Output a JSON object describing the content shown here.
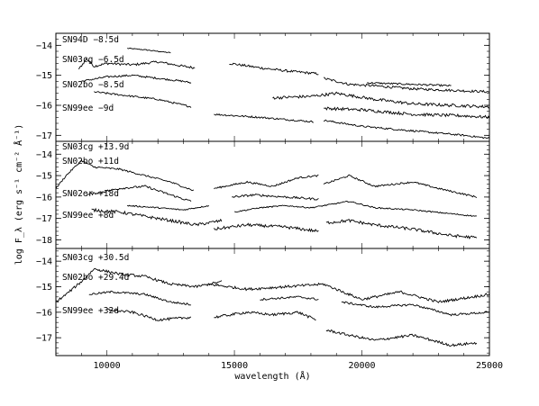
{
  "chart_data": {
    "type": "line",
    "xlabel": "wavelength (Å)",
    "ylabel": "log F_λ (erg s⁻¹ cm⁻² Å⁻¹)",
    "xlim": [
      8000,
      25000
    ],
    "x_ticks": [
      "10000",
      "15000",
      "20000",
      "25000"
    ],
    "x_tick_values": [
      10000,
      15000,
      20000,
      25000
    ],
    "panels": [
      {
        "ylim": [
          -17.2,
          -13.6
        ],
        "y_ticks": [
          "−14",
          "−15",
          "−16",
          "−17"
        ],
        "y_tick_values": [
          -14,
          -15,
          -16,
          -17
        ],
        "series": [
          {
            "name": "SN94D −8.5d",
            "noise": 0.015,
            "segments": [
              [
                [
                  10800,
                  -14.1
                ],
                [
                  11500,
                  -14.15
                ],
                [
                  12500,
                  -14.25
                ]
              ]
            ]
          },
          {
            "name": "SN03cg −6.5d",
            "noise": 0.04,
            "segments": [
              [
                [
                  8900,
                  -14.8
                ],
                [
                  9200,
                  -14.45
                ],
                [
                  9500,
                  -14.7
                ],
                [
                  10000,
                  -14.6
                ],
                [
                  11000,
                  -14.65
                ],
                [
                  12000,
                  -14.55
                ],
                [
                  13000,
                  -14.7
                ],
                [
                  13450,
                  -14.75
                ]
              ],
              [
                [
                  14800,
                  -14.6
                ],
                [
                  16000,
                  -14.75
                ],
                [
                  17000,
                  -14.85
                ],
                [
                  18300,
                  -14.95
                ]
              ],
              [
                [
                  18500,
                  -15.1
                ],
                [
                  19500,
                  -15.3
                ],
                [
                  20500,
                  -15.35
                ],
                [
                  22000,
                  -15.45
                ],
                [
                  23500,
                  -15.5
                ],
                [
                  25000,
                  -15.55
                ]
              ]
            ]
          },
          {
            "name": "SN02bo −8.5d",
            "noise": 0.03,
            "segments": [
              [
                [
                  9000,
                  -15.2
                ],
                [
                  10000,
                  -15.05
                ],
                [
                  11000,
                  -15.0
                ],
                [
                  12000,
                  -15.1
                ],
                [
                  13000,
                  -15.2
                ],
                [
                  13300,
                  -15.25
                ]
              ],
              [
                [
                  20200,
                  -15.25
                ],
                [
                  22000,
                  -15.3
                ],
                [
                  23500,
                  -15.35
                ]
              ]
            ]
          },
          {
            "name": "SN99ee −9d",
            "noise": 0.03,
            "segments": [
              [
                [
                  9500,
                  -15.55
                ],
                [
                  11000,
                  -15.7
                ],
                [
                  12000,
                  -15.8
                ],
                [
                  13300,
                  -16.05
                ]
              ],
              [
                [
                  14200,
                  -16.3
                ],
                [
                  16000,
                  -16.4
                ],
                [
                  18100,
                  -16.55
                ]
              ],
              [
                [
                  18500,
                  -16.5
                ],
                [
                  20000,
                  -16.7
                ],
                [
                  22000,
                  -16.85
                ],
                [
                  24000,
                  -17.0
                ],
                [
                  25000,
                  -17.1
                ]
              ]
            ]
          },
          {
            "name": "",
            "noise": 0.05,
            "segments": [
              [
                [
                  16500,
                  -15.75
                ],
                [
                  18000,
                  -15.7
                ],
                [
                  19000,
                  -15.6
                ],
                [
                  20500,
                  -15.8
                ],
                [
                  22000,
                  -15.95
                ],
                [
                  23500,
                  -16.0
                ],
                [
                  25000,
                  -16.05
                ]
              ],
              [
                [
                  18500,
                  -16.1
                ],
                [
                  20000,
                  -16.15
                ],
                [
                  22000,
                  -16.3
                ],
                [
                  24000,
                  -16.35
                ],
                [
                  25000,
                  -16.4
                ]
              ]
            ]
          }
        ]
      },
      {
        "ylim": [
          -18.4,
          -13.4
        ],
        "y_ticks": [
          "−14",
          "−15",
          "−16",
          "−17",
          "−18"
        ],
        "y_tick_values": [
          -14,
          -15,
          -16,
          -17,
          -18
        ],
        "series": [
          {
            "name": "SN03cg +13.9d",
            "noise": 0.04,
            "segments": [
              [
                [
                  8000,
                  -15.6
                ],
                [
                  8400,
                  -15.0
                ],
                [
                  9000,
                  -14.3
                ],
                [
                  9500,
                  -14.6
                ],
                [
                  10500,
                  -14.7
                ],
                [
                  11500,
                  -15.0
                ],
                [
                  12500,
                  -15.3
                ],
                [
                  13400,
                  -15.7
                ]
              ],
              [
                [
                  14200,
                  -15.6
                ],
                [
                  15500,
                  -15.3
                ],
                [
                  16500,
                  -15.5
                ],
                [
                  17500,
                  -15.1
                ],
                [
                  18300,
                  -15.0
                ]
              ],
              [
                [
                  18500,
                  -15.4
                ],
                [
                  19500,
                  -15.0
                ],
                [
                  20500,
                  -15.5
                ],
                [
                  22000,
                  -15.3
                ],
                [
                  23000,
                  -15.6
                ],
                [
                  24500,
                  -16.0
                ]
              ]
            ]
          },
          {
            "name": "SN02bo +11d",
            "noise": 0.05,
            "segments": [
              [
                [
                  9200,
                  -15.9
                ],
                [
                  10500,
                  -15.6
                ],
                [
                  11500,
                  -15.5
                ],
                [
                  12500,
                  -15.9
                ],
                [
                  13300,
                  -16.2
                ]
              ],
              [
                [
                  14900,
                  -16.0
                ],
                [
                  15800,
                  -15.9
                ],
                [
                  17000,
                  -16.0
                ],
                [
                  18300,
                  -16.1
                ]
              ]
            ]
          },
          {
            "name": "SN02er +18d",
            "noise": 0.03,
            "segments": [
              [
                [
                  10800,
                  -16.4
                ],
                [
                  12000,
                  -16.5
                ],
                [
                  13000,
                  -16.6
                ],
                [
                  14000,
                  -16.4
                ]
              ],
              [
                [
                  15000,
                  -16.7
                ],
                [
                  16000,
                  -16.5
                ],
                [
                  17000,
                  -16.4
                ],
                [
                  18000,
                  -16.5
                ],
                [
                  19500,
                  -16.2
                ],
                [
                  20500,
                  -16.5
                ],
                [
                  22000,
                  -16.6
                ],
                [
                  24500,
                  -16.9
                ]
              ]
            ]
          },
          {
            "name": "SN99ee +8d",
            "noise": 0.07,
            "segments": [
              [
                [
                  9400,
                  -16.6
                ],
                [
                  10500,
                  -16.7
                ],
                [
                  11500,
                  -16.9
                ],
                [
                  12500,
                  -17.1
                ],
                [
                  13500,
                  -17.3
                ],
                [
                  14500,
                  -17.1
                ]
              ],
              [
                [
                  14200,
                  -17.5
                ],
                [
                  15500,
                  -17.3
                ],
                [
                  17000,
                  -17.4
                ],
                [
                  18300,
                  -17.6
                ]
              ],
              [
                [
                  18600,
                  -17.2
                ],
                [
                  19500,
                  -17.1
                ],
                [
                  20500,
                  -17.3
                ],
                [
                  22000,
                  -17.5
                ],
                [
                  23500,
                  -17.8
                ],
                [
                  24500,
                  -17.9
                ]
              ]
            ]
          }
        ]
      },
      {
        "ylim": [
          -17.7,
          -13.5
        ],
        "y_ticks": [
          "−14",
          "−15",
          "−16",
          "−17"
        ],
        "y_tick_values": [
          -14,
          -15,
          -16,
          -17
        ],
        "series": [
          {
            "name": "SN03cg +30.5d",
            "noise": 0.05,
            "segments": [
              [
                [
                  8000,
                  -15.6
                ],
                [
                  8400,
                  -15.3
                ],
                [
                  9000,
                  -14.8
                ],
                [
                  9500,
                  -14.3
                ],
                [
                  10500,
                  -14.5
                ],
                [
                  11500,
                  -14.6
                ],
                [
                  12500,
                  -14.9
                ],
                [
                  13500,
                  -15.0
                ],
                [
                  14500,
                  -14.8
                ]
              ],
              [
                [
                  14000,
                  -14.9
                ],
                [
                  15500,
                  -15.1
                ],
                [
                  17000,
                  -15.0
                ],
                [
                  18500,
                  -14.9
                ],
                [
                  20000,
                  -15.5
                ],
                [
                  21500,
                  -15.2
                ],
                [
                  23000,
                  -15.6
                ],
                [
                  25000,
                  -15.3
                ]
              ]
            ]
          },
          {
            "name": "SN02bo +29.4d",
            "noise": 0.04,
            "segments": [
              [
                [
                  9300,
                  -15.3
                ],
                [
                  10200,
                  -15.2
                ],
                [
                  11500,
                  -15.3
                ],
                [
                  12500,
                  -15.6
                ],
                [
                  13300,
                  -15.7
                ]
              ],
              [
                [
                  16000,
                  -15.5
                ],
                [
                  17500,
                  -15.4
                ],
                [
                  18300,
                  -15.5
                ]
              ],
              [
                [
                  19200,
                  -15.6
                ],
                [
                  20500,
                  -15.8
                ],
                [
                  22000,
                  -15.7
                ],
                [
                  23500,
                  -16.1
                ],
                [
                  25000,
                  -16.0
                ]
              ]
            ]
          },
          {
            "name": "SN99ee +32d",
            "noise": 0.05,
            "segments": [
              [
                [
                  10000,
                  -15.9
                ],
                [
                  11000,
                  -16.0
                ],
                [
                  12000,
                  -16.3
                ],
                [
                  13300,
                  -16.2
                ]
              ],
              [
                [
                  14200,
                  -16.2
                ],
                [
                  15500,
                  -16.0
                ],
                [
                  16500,
                  -16.1
                ],
                [
                  17500,
                  -16.0
                ],
                [
                  18200,
                  -16.3
                ]
              ],
              [
                [
                  18600,
                  -16.7
                ],
                [
                  19500,
                  -16.9
                ],
                [
                  20500,
                  -17.1
                ],
                [
                  22000,
                  -16.9
                ],
                [
                  23500,
                  -17.3
                ],
                [
                  24500,
                  -17.2
                ]
              ]
            ]
          }
        ]
      }
    ]
  }
}
